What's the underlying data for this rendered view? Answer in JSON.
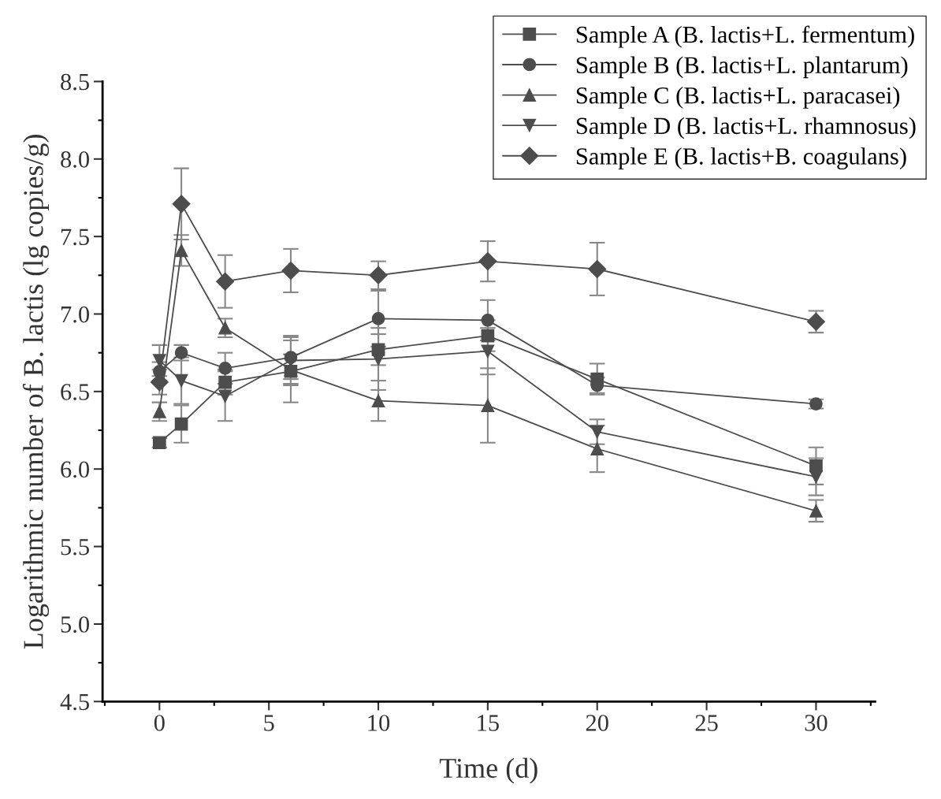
{
  "chart_data": {
    "type": "line",
    "xlabel": "Time (d)",
    "ylabel": "Logarithmic number of B. lactis (lg copies/g)",
    "x": [
      0,
      1,
      3,
      6,
      10,
      15,
      20,
      30
    ],
    "xlim": [
      -2.6,
      32.7
    ],
    "xticks": [
      0,
      5,
      10,
      15,
      20,
      25,
      30
    ],
    "ylim": [
      4.5,
      8.5
    ],
    "yticks": [
      {
        "value": 4.5,
        "label": "4.5"
      },
      {
        "value": 5.0,
        "label": "5.0"
      },
      {
        "value": 5.5,
        "label": "5.5"
      },
      {
        "value": 6.0,
        "label": "6.0"
      },
      {
        "value": 6.5,
        "label": "6.5"
      },
      {
        "value": 7.0,
        "label": "7.0"
      },
      {
        "value": 7.5,
        "label": "7.5"
      },
      {
        "value": 8.0,
        "label": "8.0"
      },
      {
        "value": 8.5,
        "label": "8.5"
      }
    ],
    "legend": "top right",
    "grid": false,
    "line_style": "solid",
    "series": [
      {
        "name": "Sample A (B. lactis+L. fermentum)",
        "color": "#4d4d4d",
        "marker": "square",
        "values": [
          6.17,
          6.29,
          6.56,
          6.63,
          6.77,
          6.86,
          6.58,
          6.02
        ],
        "errors": [
          0.03,
          0.12,
          0.08,
          0.2,
          0.1,
          0.1,
          0.1,
          0.12
        ]
      },
      {
        "name": "Sample B (B. lactis+L. plantarum)",
        "color": "#4d4d4d",
        "marker": "circle",
        "values": [
          6.63,
          6.75,
          6.65,
          6.72,
          6.97,
          6.96,
          6.54,
          6.42
        ],
        "errors": [
          0.06,
          0.05,
          0.1,
          0.14,
          0.18,
          0.13,
          0.05,
          0.03
        ]
      },
      {
        "name": "Sample C (B. lactis+L. paracasei)",
        "color": "#4d4d4d",
        "marker": "triangle",
        "values": [
          6.37,
          7.41,
          6.91,
          6.64,
          6.44,
          6.41,
          6.13,
          5.73
        ],
        "errors": [
          0.06,
          0.1,
          0.06,
          0.1,
          0.13,
          0.24,
          0.15,
          0.07
        ]
      },
      {
        "name": "Sample D (B. lactis+L. rhamnosus)",
        "color": "#4d4d4d",
        "marker": "triangle",
        "values": [
          6.7,
          6.57,
          6.47,
          6.7,
          6.71,
          6.76,
          6.24,
          5.95
        ],
        "errors": [
          0.1,
          0.15,
          0.16,
          0.15,
          0.2,
          0.15,
          0.08,
          0.12
        ]
      },
      {
        "name": "Sample E (B. lactis+B. coagulans)",
        "color": "#4d4d4d",
        "marker": "diamond",
        "values": [
          6.56,
          7.71,
          7.21,
          7.28,
          7.25,
          7.34,
          7.29,
          6.95
        ],
        "errors": [
          0.08,
          0.23,
          0.17,
          0.14,
          0.09,
          0.13,
          0.17,
          0.07
        ]
      }
    ]
  }
}
